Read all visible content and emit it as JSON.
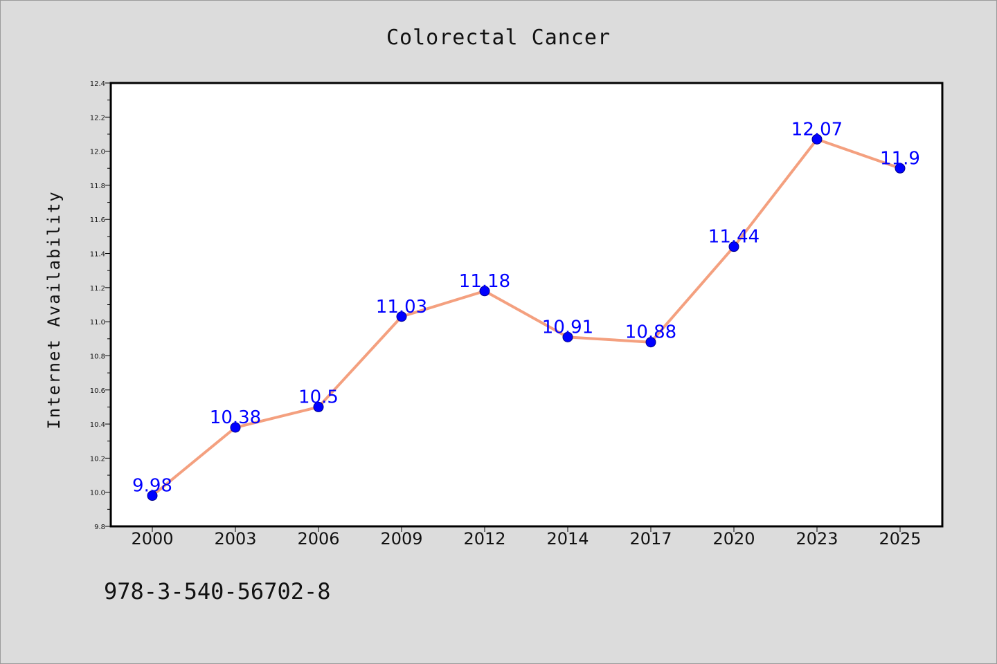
{
  "chart_data": {
    "type": "line",
    "title": "Colorectal Cancer",
    "xlabel": "",
    "ylabel": "Internet Availability",
    "categories": [
      "2000",
      "2003",
      "2006",
      "2009",
      "2012",
      "2014",
      "2017",
      "2020",
      "2023",
      "2025"
    ],
    "series": [
      {
        "values": [
          9.98,
          10.38,
          10.5,
          11.03,
          11.18,
          10.91,
          10.88,
          11.44,
          12.07,
          11.9
        ],
        "line_color": "#f4a07f",
        "marker_color": "#0000ff"
      }
    ],
    "data_labels": [
      "9.98",
      "10.38",
      "10.5",
      "11.03",
      "11.18",
      "10.91",
      "10.88",
      "11.44",
      "12.07",
      "11.9"
    ],
    "ylim": [
      9.8,
      12.4
    ],
    "yticks": [
      "9.8",
      "10.0",
      "10.2",
      "10.4",
      "10.6",
      "10.8",
      "11.0",
      "11.2",
      "11.4",
      "11.6",
      "11.8",
      "12.0",
      "12.2",
      "12.4"
    ],
    "grid": false,
    "legend": "none"
  },
  "footer": {
    "isbn": "978-3-540-56702-8"
  },
  "colors": {
    "background": "#dcdcdc",
    "plot_area": "#ffffff",
    "line": "#f4a07f",
    "marker": "#0000ff",
    "data_label": "#0000ff"
  }
}
